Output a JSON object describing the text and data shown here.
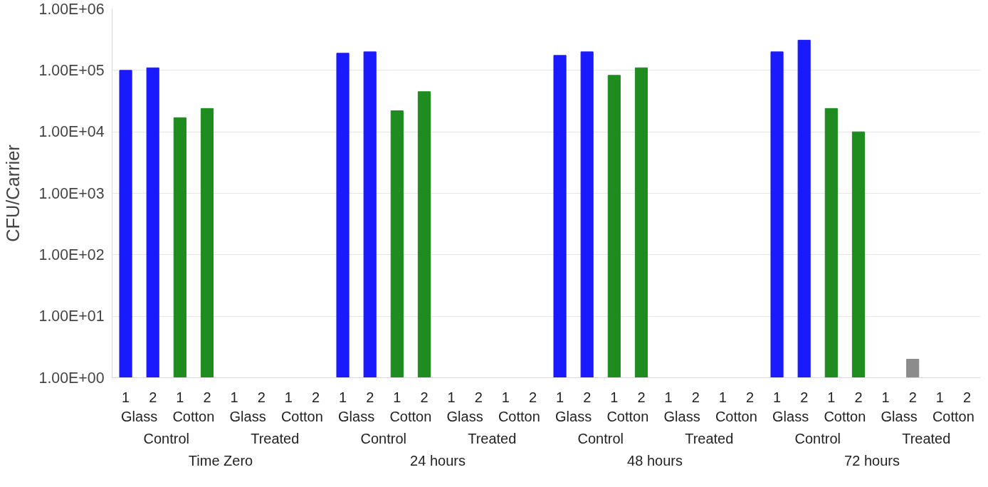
{
  "chart_data": {
    "type": "bar",
    "ylabel": "CFU/Carrier",
    "log": "y",
    "ylim": [
      1,
      1000000
    ],
    "yticks": [
      {
        "value": 1,
        "label": "1.00E+00"
      },
      {
        "value": 10,
        "label": "1.00E+01"
      },
      {
        "value": 100,
        "label": "1.00E+02"
      },
      {
        "value": 1000,
        "label": "1.00E+03"
      },
      {
        "value": 10000,
        "label": "1.00E+04"
      },
      {
        "value": 100000,
        "label": "1.00E+05"
      },
      {
        "value": 1000000,
        "label": "1.00E+06"
      }
    ],
    "grid": "y",
    "categories": [
      "1",
      "2",
      "1",
      "2",
      "1",
      "2",
      "1",
      "2",
      "1",
      "2",
      "1",
      "2",
      "1",
      "2",
      "1",
      "2",
      "1",
      "2",
      "1",
      "2",
      "1",
      "2",
      "1",
      "2",
      "1",
      "2",
      "1",
      "2",
      "1",
      "2",
      "1",
      "2"
    ],
    "annotations": [
      "Glass",
      "Cotton",
      "Glass",
      "Cotton",
      "Glass",
      "Cotton",
      "Glass",
      "Cotton",
      "Glass",
      "Cotton",
      "Glass",
      "Cotton",
      "Glass",
      "Cotton",
      "Glass",
      "Cotton",
      "Control",
      "Treated",
      "Control",
      "Treated",
      "Control",
      "Treated",
      "Control",
      "Treated",
      "Time Zero",
      "24 hours",
      "48 hours",
      "72 hours"
    ],
    "values": [
      100000,
      110000,
      17000,
      24000,
      null,
      null,
      null,
      null,
      190000,
      200000,
      22000,
      45000,
      null,
      null,
      null,
      null,
      175000,
      200000,
      83000,
      110000,
      null,
      null,
      null,
      null,
      200000,
      310000,
      24000,
      10000,
      null,
      2,
      null,
      null
    ],
    "colors": [
      "#1a1aff",
      "#1a1aff",
      "#1e8c1e",
      "#1e8c1e",
      "#1a1aff",
      "#8c8c8c",
      "#1e8c1e",
      "#1e8c1e",
      "#1a1aff",
      "#1a1aff",
      "#1e8c1e",
      "#1e8c1e",
      "#1a1aff",
      "#8c8c8c",
      "#1e8c1e",
      "#1e8c1e",
      "#1a1aff",
      "#1a1aff",
      "#1e8c1e",
      "#1e8c1e",
      "#1a1aff",
      "#8c8c8c",
      "#1e8c1e",
      "#1e8c1e",
      "#1a1aff",
      "#1a1aff",
      "#1e8c1e",
      "#1e8c1e",
      "#1a1aff",
      "#8c8c8c",
      "#1e8c1e",
      "#1e8c1e"
    ]
  }
}
